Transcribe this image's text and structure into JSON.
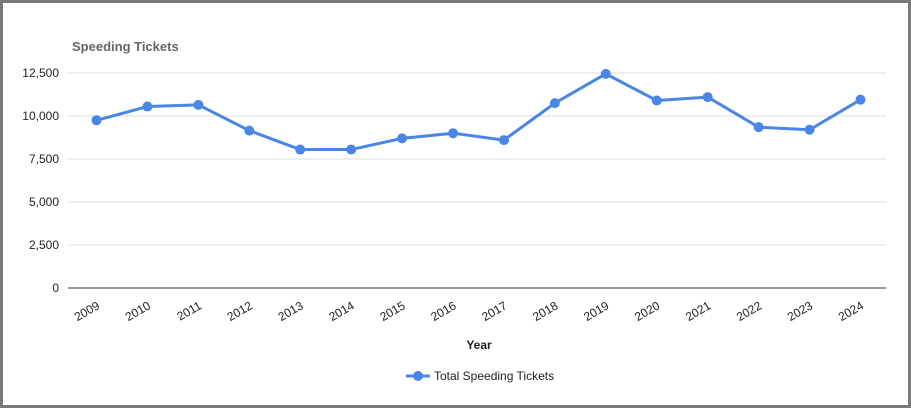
{
  "chart_data": {
    "type": "line",
    "title": "Speeding Tickets",
    "xlabel": "Year",
    "ylabel": "",
    "categories": [
      "2009",
      "2010",
      "2011",
      "2012",
      "2013",
      "2014",
      "2015",
      "2016",
      "2017",
      "2018",
      "2019",
      "2020",
      "2021",
      "2022",
      "2023",
      "2024"
    ],
    "series": [
      {
        "name": "Total Speeding Tickets",
        "color": "#4a86e8",
        "values": [
          9750,
          10550,
          10650,
          9150,
          8050,
          8050,
          8700,
          9000,
          8600,
          10750,
          12450,
          10900,
          11100,
          9350,
          9200,
          10950
        ]
      }
    ],
    "ylim": [
      0,
      12500
    ],
    "yticks": [
      0,
      2500,
      5000,
      7500,
      10000,
      12500
    ],
    "ytick_labels": [
      "0",
      "2,500",
      "5,000",
      "7,500",
      "10,000",
      "12,500"
    ],
    "grid": true,
    "legend_position": "bottom"
  }
}
